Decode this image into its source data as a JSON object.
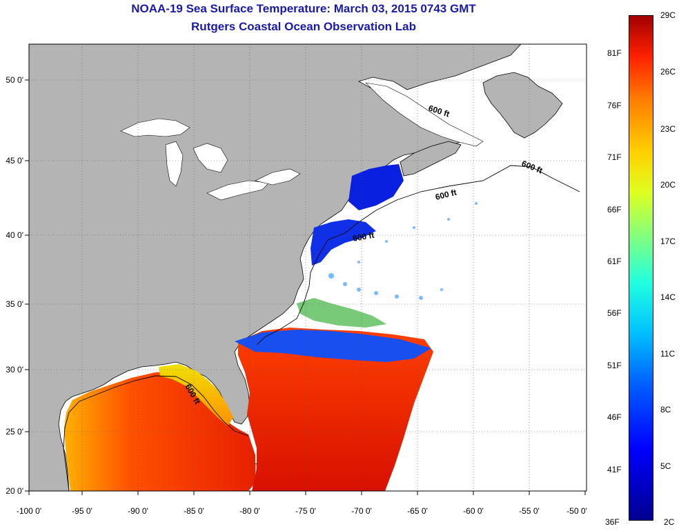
{
  "header": {
    "title": "NOAA-19 Sea Surface Temperature:  March 03, 2015 0743 GMT",
    "subtitle": "Rutgers Coastal Ocean Observation Lab"
  },
  "axes": {
    "lon_labels": [
      "-100 0'",
      "-95 0'",
      "-90 0'",
      "-85 0'",
      "-80 0'",
      "-75 0'",
      "-70 0'",
      "-65 0'",
      "-60 0'",
      "-55 0'",
      "-50 0'"
    ],
    "lat_labels": [
      "50 0'",
      "45 0'",
      "40 0'",
      "35 0'",
      "30 0'",
      "25 0'",
      "20 0'"
    ]
  },
  "contour_labels": [
    "600 ft",
    "600 ft",
    "600 ft",
    "600 ft",
    "600 ft"
  ],
  "colorbar": {
    "celsius": [
      "29C",
      "26C",
      "23C",
      "20C",
      "17C",
      "14C",
      "11C",
      "8C",
      "5C",
      "2C"
    ],
    "fahrenheit": [
      "81F",
      "76F",
      "71F",
      "66F",
      "61F",
      "56F",
      "51F",
      "46F",
      "41F",
      "36F"
    ]
  },
  "colors": {
    "land": "#b4b4b4",
    "no_data": "#ffffff",
    "title": "#1a1aa8",
    "cold": "#0000d0",
    "warm": "#e03000"
  }
}
